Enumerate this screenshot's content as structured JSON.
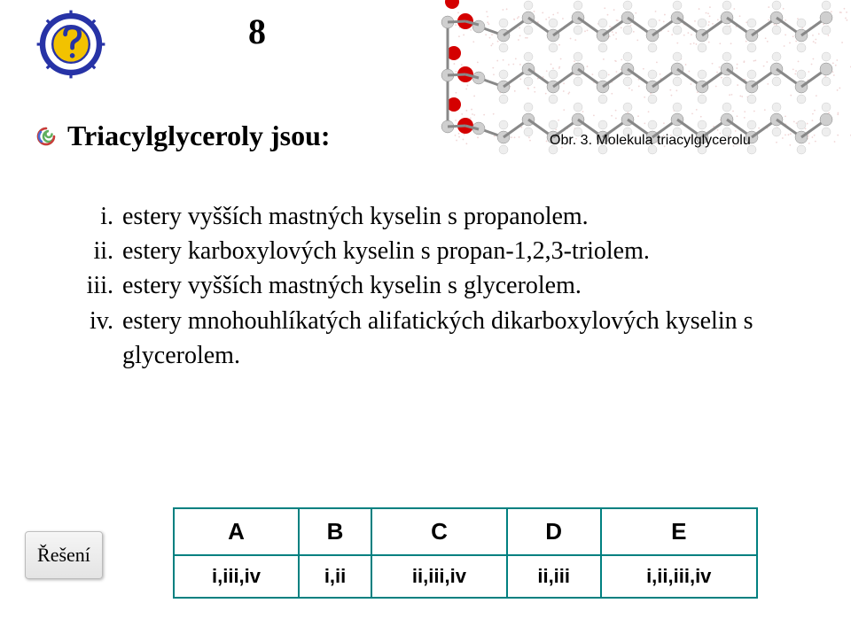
{
  "slideNumber": "8",
  "heading": "Triacylglyceroly jsou:",
  "caption": "Obr. 3. Molekula triacylglycerolu",
  "options": [
    {
      "marker": "i.",
      "text": "estery vyšších mastných kyselin s propanolem."
    },
    {
      "marker": "ii.",
      "text": "estery karboxylových kyselin s propan-1,2,3-triolem."
    },
    {
      "marker": "iii.",
      "text": "estery vyšších mastných kyselin s glycerolem."
    },
    {
      "marker": "iv.",
      "text": "estery mnohouhlíkatých alifatických dikarboxylových kyselin s glycerolem."
    }
  ],
  "resolveButton": "Řešení",
  "answers": {
    "headers": [
      "A",
      "B",
      "C",
      "D",
      "E"
    ],
    "cells": [
      "i,iii,iv",
      "i,ii",
      "ii,iii,iv",
      "ii,iii",
      "i,ii,iii,iv"
    ]
  },
  "colors": {
    "tableBorder": "#008080",
    "iconBlue": "#2733a6",
    "iconYellow": "#f2c200"
  },
  "molecule": {
    "chains": 3,
    "chainLength": 14,
    "atomRadius": 7,
    "oxygenColor": "#d40000",
    "carbonColor": "#cfcfcf",
    "hydrogenHalo": "#eeeeee",
    "dotDensity": "#f0d6d6"
  }
}
